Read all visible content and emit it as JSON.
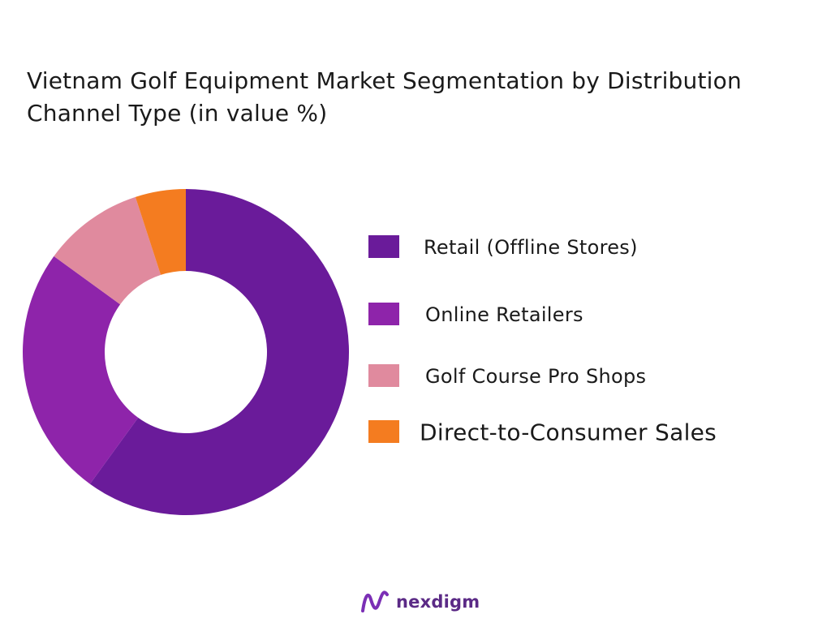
{
  "title_line1": "Vietnam Golf Equipment Market Segmentation by Distribution",
  "title_line2": "Channel Type  (in value %)",
  "brand": {
    "name": "nexdigm",
    "logo_icon": "nexdigm-logo-icon",
    "logo_color": "#7b2fb5"
  },
  "chart_data": {
    "type": "pie",
    "subtype": "donut",
    "title": "Vietnam Golf Equipment Market Segmentation by Distribution Channel Type  (in value %)",
    "categories": [
      "Retail (Offline Stores)",
      "Online Retailers",
      "Golf Course Pro Shops",
      "Direct-to-Consumer Sales"
    ],
    "values": [
      60,
      25,
      10,
      5
    ],
    "colors": [
      "#6a1b9a",
      "#8e24aa",
      "#e08a9e",
      "#f47c20"
    ],
    "legend_position": "right",
    "start_angle": "top",
    "direction": "clockwise",
    "data_labels": false
  }
}
